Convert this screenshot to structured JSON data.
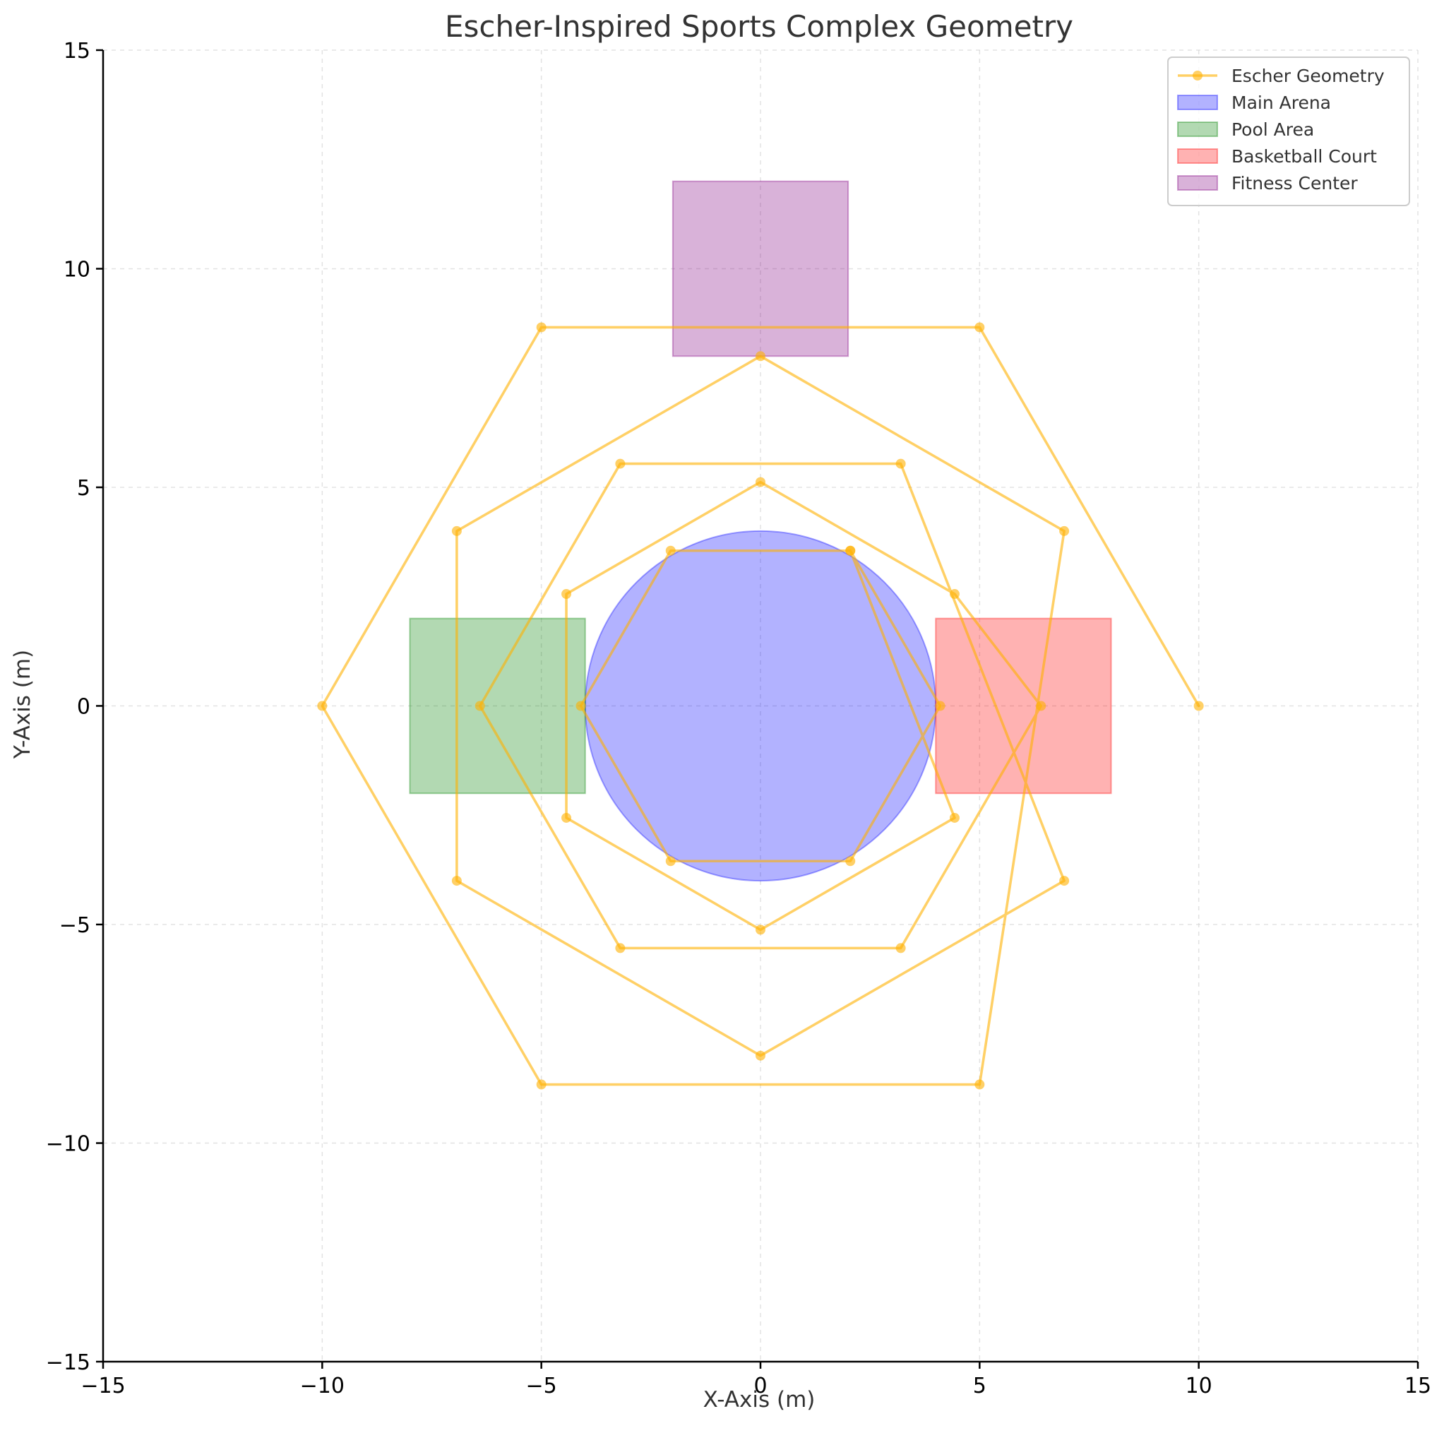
{
  "chart_data": {
    "type": "line",
    "title": "Escher-Inspired Sports Complex Geometry",
    "xlabel": "X-Axis (m)",
    "ylabel": "Y-Axis (m)",
    "xlim": [
      -15,
      15
    ],
    "ylim": [
      -15,
      15
    ],
    "xticks": [
      -15,
      -10,
      -5,
      0,
      5,
      10,
      15
    ],
    "yticks": [
      -15,
      -10,
      -5,
      0,
      5,
      10,
      15
    ],
    "xtick_labels": [
      "−15",
      "−10",
      "−5",
      "0",
      "5",
      "10",
      "15"
    ],
    "ytick_labels": [
      "−15",
      "−10",
      "−5",
      "0",
      "5",
      "10",
      "15"
    ],
    "grid": true,
    "legend_position": "top-right",
    "series": [
      {
        "name": "Escher Geometry",
        "type": "line",
        "color": "#FFB000",
        "points": [
          [
            10,
            0
          ],
          [
            5,
            8.66
          ],
          [
            -5,
            8.66
          ],
          [
            -10,
            0
          ],
          [
            -5,
            -8.66
          ],
          [
            5,
            -8.66
          ],
          [
            6.93,
            4
          ],
          [
            0,
            8
          ],
          [
            -6.93,
            4
          ],
          [
            -6.93,
            -4
          ],
          [
            0,
            -8
          ],
          [
            6.93,
            -4
          ],
          [
            3.2,
            5.54
          ],
          [
            -3.2,
            5.54
          ],
          [
            -6.4,
            0
          ],
          [
            -3.2,
            -5.54
          ],
          [
            3.2,
            -5.54
          ],
          [
            6.4,
            0
          ],
          [
            4.43,
            2.56
          ],
          [
            0,
            5.12
          ],
          [
            -4.43,
            2.56
          ],
          [
            -4.43,
            -2.56
          ],
          [
            0,
            -5.12
          ],
          [
            4.43,
            -2.56
          ],
          [
            2.05,
            3.55
          ],
          [
            -2.05,
            3.55
          ],
          [
            -4.1,
            0
          ],
          [
            -2.05,
            -3.55
          ],
          [
            2.05,
            -3.55
          ],
          [
            4.1,
            0
          ],
          [
            2.05,
            3.55
          ]
        ]
      }
    ],
    "areas": [
      {
        "name": "Main Arena",
        "shape": "circle",
        "center": [
          0,
          0
        ],
        "radius": 4,
        "color": "#0000FF"
      },
      {
        "name": "Pool Area",
        "shape": "rectangle",
        "x": [
          -8,
          -4
        ],
        "y": [
          -2,
          2
        ],
        "color": "#008000"
      },
      {
        "name": "Basketball Court",
        "shape": "rectangle",
        "x": [
          4,
          8
        ],
        "y": [
          -2,
          2
        ],
        "color": "#FF0000"
      },
      {
        "name": "Fitness Center",
        "shape": "rectangle",
        "x": [
          -2,
          2
        ],
        "y": [
          8,
          12
        ],
        "color": "#800080"
      }
    ]
  }
}
